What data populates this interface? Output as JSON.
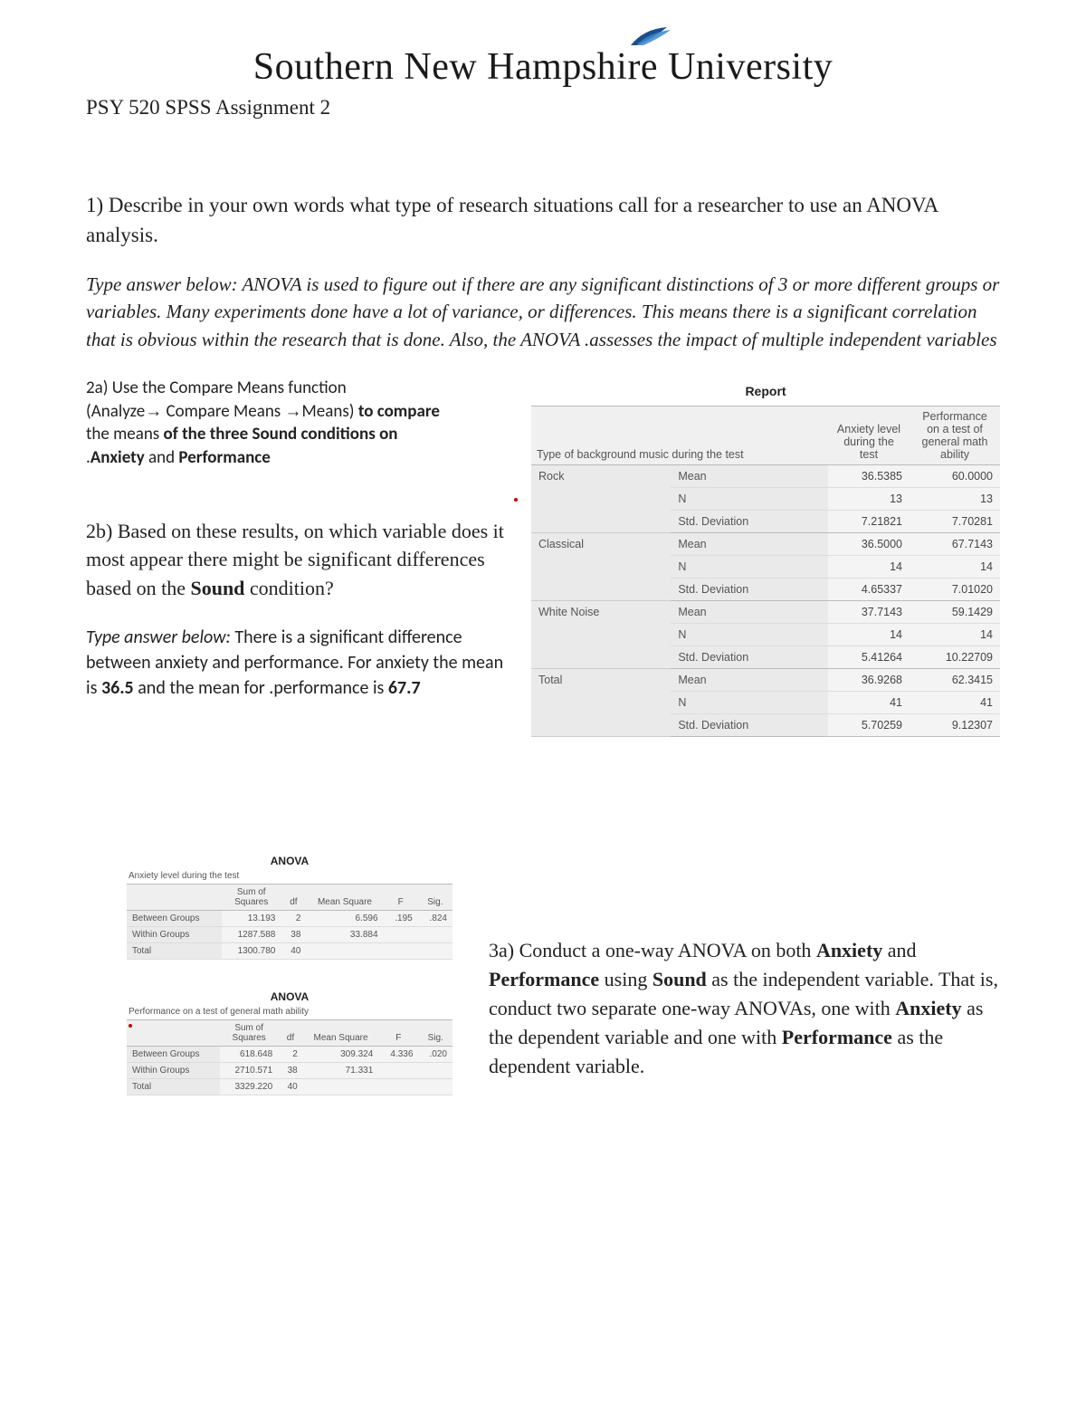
{
  "logo": {
    "text": "Southern New Hampshire University",
    "leaf_colors": [
      "#1a4f8f",
      "#2b6fb3",
      "#3d87c7"
    ]
  },
  "course_title": "PSY 520 SPSS Assignment 2",
  "q1": "1) Describe in your own words what type of research situations call for a researcher to use an ANOVA analysis.",
  "answer1": "Type answer below: ANOVA is used to figure out if there are any significant distinctions of 3 or more different groups or variables. Many experiments done have a lot of variance, or differences. This means there is a significant correlation that is obvious within the research that is done. Also, the ANOVA .assesses the impact of multiple independent variables",
  "q2a_lines": [
    "2a) Use the Compare Means function",
    "(Analyze→ Compare Means →Means) to compare",
    "the means of the three Sound conditions on",
    ".Anxiety and Performance"
  ],
  "q2b": "2b) Based on these results, on which variable does it most appear there might be significant differences based on the Sound condition?",
  "answer2b": "Type answer below: There is a significant difference between anxiety and performance. For anxiety the mean is 36.5 and the mean for .performance is 67.7",
  "report": {
    "title": "Report",
    "corner": "Type of background music during the test",
    "col2": "Anxiety level during the test",
    "col3": "Performance on a test of general math ability",
    "stat_labels": [
      "Mean",
      "N",
      "Std. Deviation"
    ],
    "groups": [
      {
        "name": "Rock",
        "vals": [
          [
            "36.5385",
            "60.0000"
          ],
          [
            "13",
            "13"
          ],
          [
            "7.21821",
            "7.70281"
          ]
        ]
      },
      {
        "name": "Classical",
        "vals": [
          [
            "36.5000",
            "67.7143"
          ],
          [
            "14",
            "14"
          ],
          [
            "4.65337",
            "7.01020"
          ]
        ]
      },
      {
        "name": "White Noise",
        "vals": [
          [
            "37.7143",
            "59.1429"
          ],
          [
            "14",
            "14"
          ],
          [
            "5.41264",
            "10.22709"
          ]
        ]
      },
      {
        "name": "Total",
        "vals": [
          [
            "36.9268",
            "62.3415"
          ],
          [
            "41",
            "41"
          ],
          [
            "5.70259",
            "9.12307"
          ]
        ]
      }
    ]
  },
  "anova1": {
    "title": "ANOVA",
    "sub": "Anxiety level during the test",
    "cols": [
      "",
      "Sum of Squares",
      "df",
      "Mean Square",
      "F",
      "Sig."
    ],
    "rows": [
      [
        "Between Groups",
        "13.193",
        "2",
        "6.596",
        ".195",
        ".824"
      ],
      [
        "Within Groups",
        "1287.588",
        "38",
        "33.884",
        "",
        ""
      ],
      [
        "Total",
        "1300.780",
        "40",
        "",
        "",
        ""
      ]
    ]
  },
  "anova2": {
    "title": "ANOVA",
    "sub": "Performance on a test of general math ability",
    "cols": [
      "",
      "Sum of Squares",
      "df",
      "Mean Square",
      "F",
      "Sig."
    ],
    "rows": [
      [
        "Between Groups",
        "618.648",
        "2",
        "309.324",
        "4.336",
        ".020"
      ],
      [
        "Within Groups",
        "2710.571",
        "38",
        "71.331",
        "",
        ""
      ],
      [
        "Total",
        "3329.220",
        "40",
        "",
        "",
        ""
      ]
    ]
  },
  "q3a": "3a) Conduct a one-way ANOVA on both Anxiety and Performance using Sound as the independent variable. That is, conduct two separate one-way ANOVAs, one with Anxiety as the dependent variable and one with Performance as the dependent variable."
}
